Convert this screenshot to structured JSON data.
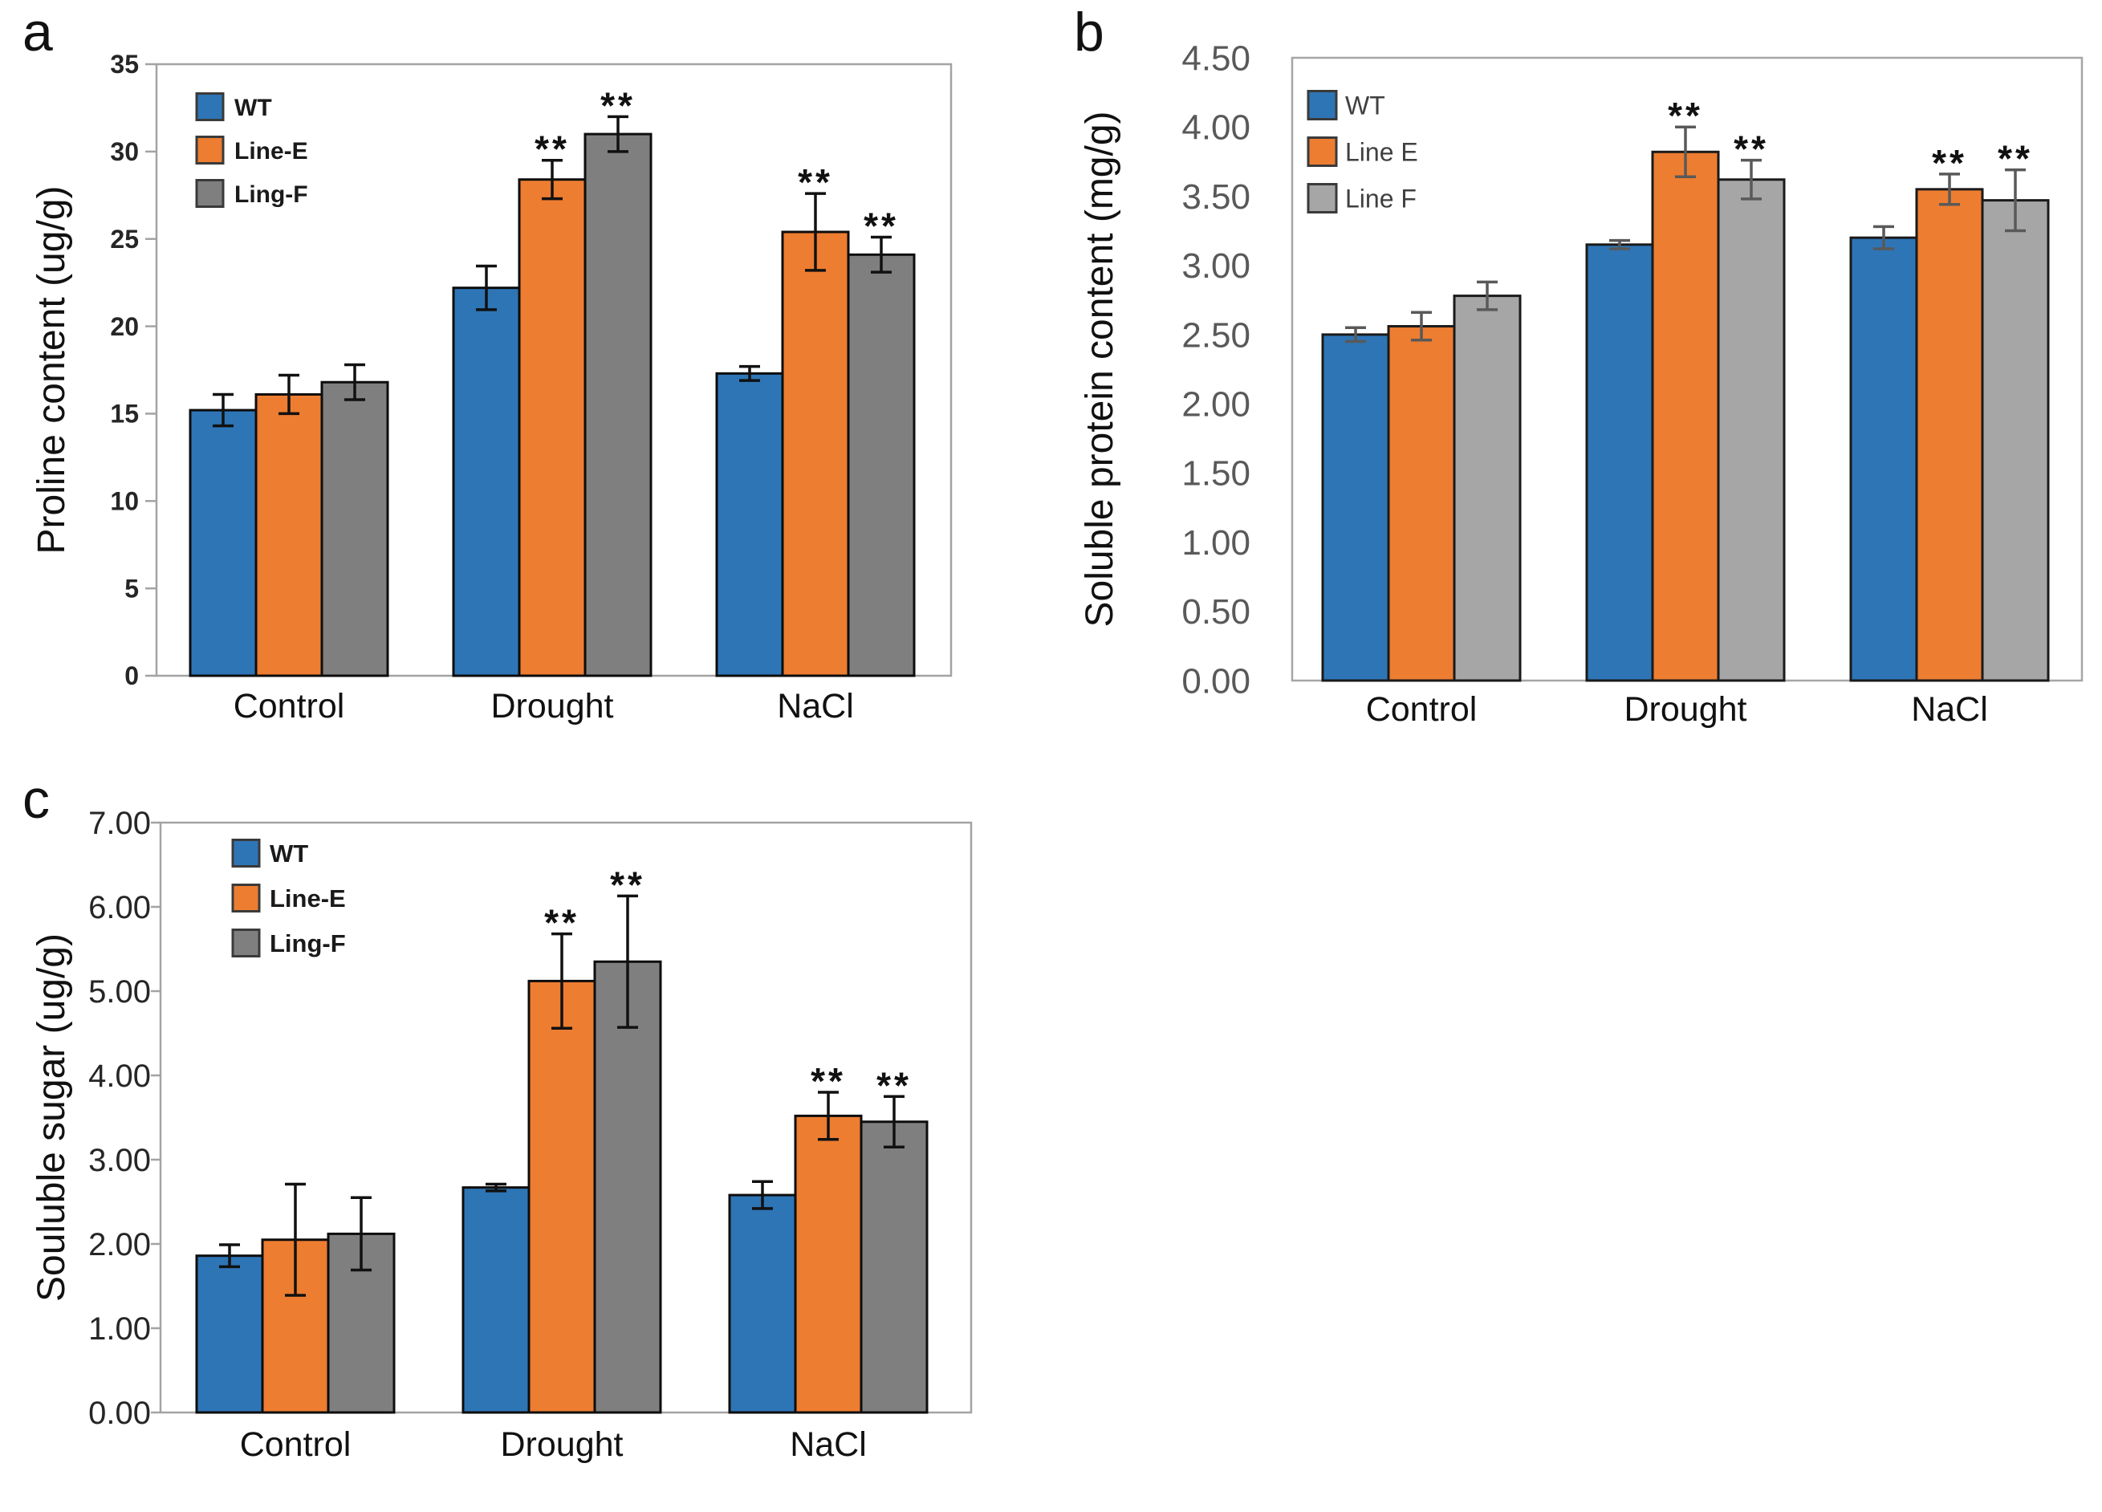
{
  "page": {
    "background": "#ffffff"
  },
  "figure": {
    "panels": [
      {
        "letter": "a"
      },
      {
        "letter": "b"
      },
      {
        "letter": "c"
      }
    ]
  },
  "chart_data": [
    {
      "id": "a",
      "type": "bar",
      "title": "",
      "xlabel": "",
      "ylabel": "Proline content (ug/g)",
      "categories": [
        "Control",
        "Drought",
        "NaCl"
      ],
      "ylim": [
        0,
        35
      ],
      "ytick_step": 5,
      "ytick_decimals": 0,
      "grid": false,
      "legend_position": "top-left-inside",
      "series": [
        {
          "name": "WT",
          "color": "#2E75B6",
          "values": [
            15.2,
            22.2,
            17.3
          ],
          "errors": [
            0.9,
            1.25,
            0.4
          ],
          "sig": [
            "",
            "",
            ""
          ]
        },
        {
          "name": "Line-E",
          "color": "#ED7D31",
          "values": [
            16.1,
            28.4,
            25.4
          ],
          "errors": [
            1.1,
            1.1,
            2.2
          ],
          "sig": [
            "",
            "**",
            "**"
          ]
        },
        {
          "name": "Ling-F",
          "color": "#7F7F7F",
          "values": [
            16.8,
            31.0,
            24.1
          ],
          "errors": [
            1.0,
            1.0,
            1.0
          ],
          "sig": [
            "",
            "**",
            "**"
          ]
        }
      ],
      "style": {
        "error_color": "#111111",
        "bar_outline": "#0D0D0D",
        "border_color": "#A3A3A3",
        "tick_marks": true,
        "tick_label_color": "#262626",
        "tick_label_size": 32,
        "tick_label_weight": 600,
        "cat_label_color": "#111111",
        "cat_label_size": 43,
        "ylabel_color": "#111111",
        "ylabel_size": 48,
        "ylabel_weight": 500,
        "legend_text_color": "#1A1A1A",
        "legend_font_size": 30,
        "legend_font_weight": 600,
        "sig_color": "#111111",
        "sig_size": 46
      }
    },
    {
      "id": "b",
      "type": "bar",
      "title": "",
      "xlabel": "",
      "ylabel": "Soluble protein content (mg/g)",
      "categories": [
        "Control",
        "Drought",
        "NaCl"
      ],
      "ylim": [
        0,
        4.5
      ],
      "ytick_step": 0.5,
      "ytick_decimals": 2,
      "grid": false,
      "legend_position": "top-left-inside",
      "series": [
        {
          "name": "WT",
          "color": "#2E75B6",
          "values": [
            2.5,
            3.15,
            3.2
          ],
          "errors": [
            0.05,
            0.03,
            0.08
          ],
          "sig": [
            "",
            "",
            ""
          ]
        },
        {
          "name": "Line E",
          "color": "#ED7D31",
          "values": [
            2.56,
            3.82,
            3.55
          ],
          "errors": [
            0.1,
            0.18,
            0.11
          ],
          "sig": [
            "",
            "**",
            "**"
          ]
        },
        {
          "name": "Line F",
          "color": "#A6A6A6",
          "values": [
            2.78,
            3.62,
            3.47
          ],
          "errors": [
            0.1,
            0.14,
            0.22
          ],
          "sig": [
            "",
            "**",
            "**"
          ]
        }
      ],
      "style": {
        "error_color": "#595959",
        "bar_outline": "#1A1A1A",
        "border_color": "#A6A6A6",
        "tick_marks": false,
        "tick_label_color": "#595959",
        "tick_label_size": 44,
        "tick_label_weight": 400,
        "cat_label_color": "#111111",
        "cat_label_size": 43,
        "ylabel_color": "#111111",
        "ylabel_size": 48,
        "ylabel_weight": 500,
        "legend_text_color": "#404040",
        "legend_font_size": 32,
        "legend_font_weight": 500,
        "sig_color": "#111111",
        "sig_size": 46
      }
    },
    {
      "id": "c",
      "type": "bar",
      "title": "",
      "xlabel": "",
      "ylabel": "Souluble sugar (ug/g)",
      "categories": [
        "Control",
        "Drought",
        "NaCl"
      ],
      "ylim": [
        0,
        7
      ],
      "ytick_step": 1,
      "ytick_decimals": 2,
      "grid": false,
      "legend_position": "top-left-inside",
      "series": [
        {
          "name": "WT",
          "color": "#2E75B6",
          "values": [
            1.86,
            2.67,
            2.58
          ],
          "errors": [
            0.13,
            0.04,
            0.16
          ],
          "sig": [
            "",
            "",
            ""
          ]
        },
        {
          "name": "Line-E",
          "color": "#ED7D31",
          "values": [
            2.05,
            5.12,
            3.52
          ],
          "errors": [
            0.66,
            0.56,
            0.28
          ],
          "sig": [
            "",
            "**",
            "**"
          ]
        },
        {
          "name": "Ling-F",
          "color": "#7F7F7F",
          "values": [
            2.12,
            5.35,
            3.45
          ],
          "errors": [
            0.43,
            0.78,
            0.3
          ],
          "sig": [
            "",
            "**",
            "**"
          ]
        }
      ],
      "style": {
        "error_color": "#111111",
        "bar_outline": "#0D0D0D",
        "border_color": "#A3A3A3",
        "tick_marks": true,
        "tick_label_color": "#262626",
        "tick_label_size": 40,
        "tick_label_weight": 500,
        "cat_label_color": "#111111",
        "cat_label_size": 43,
        "ylabel_color": "#111111",
        "ylabel_size": 48,
        "ylabel_weight": 500,
        "legend_text_color": "#1A1A1A",
        "legend_font_size": 31,
        "legend_font_weight": 600,
        "sig_color": "#111111",
        "sig_size": 46
      }
    }
  ]
}
